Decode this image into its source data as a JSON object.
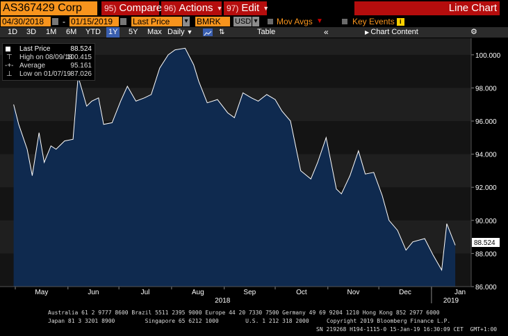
{
  "toolbar": {
    "ticker": "AS367429 Corp",
    "compare": {
      "num": "95)",
      "label": "Compare"
    },
    "actions": {
      "num": "96)",
      "label": "Actions"
    },
    "edit": {
      "num": "97)",
      "label": "Edit"
    },
    "view_title": "Line Chart"
  },
  "settings": {
    "start_date": "04/30/2018",
    "separator": "-",
    "end_date": "01/15/2019",
    "field": "Last Price",
    "source": "BMRK",
    "currency": "USD",
    "mov_avgs": "Mov Avgs",
    "key_events": "Key Events",
    "info": "i"
  },
  "periods": {
    "items": [
      "1D",
      "3D",
      "1M",
      "6M",
      "YTD",
      "1Y",
      "5Y",
      "Max"
    ],
    "selected": "1Y",
    "frequency": "Daily",
    "table": "Table",
    "chart_content": "Chart Content"
  },
  "legend": {
    "last_price_label": "Last Price",
    "last_price_value": "88.524",
    "high_label": "High on 08/09/18",
    "high_value": "100.415",
    "average_label": "Average",
    "average_value": "95.161",
    "low_label": "Low on 01/07/19",
    "low_value": "87.026"
  },
  "last_price_tag": "88.524",
  "footer": {
    "line1": "Australia 61 2 9777 8600 Brazil 5511 2395 9000 Europe 44 20 7330 7500 Germany 49 69 9204 1210 Hong Kong 852 2977 6000",
    "line2_left": "Japan 81 3 3201 8900         Singapore 65 6212 1000        U.S. 1 212 318 2000",
    "line2_right": "Copyright 2019 Bloomberg Finance L.P.",
    "line3": "SN 219268 H194-1115-0 15-Jan-19 16:30:09 CET  GMT+1:00"
  },
  "colors": {
    "area_fill": "#0f2a4f",
    "line": "#ffffff",
    "orange": "#f7941d",
    "red": "#b50d0d"
  },
  "chart_data": {
    "type": "area",
    "ylim": [
      86,
      101
    ],
    "y_ticks": [
      "86.000",
      "88.000",
      "90.000",
      "92.000",
      "94.000",
      "96.000",
      "98.000",
      "100.000"
    ],
    "x_months": [
      "May",
      "Jun",
      "Jul",
      "Aug",
      "Sep",
      "Oct",
      "Nov",
      "Dec",
      "Jan"
    ],
    "x_years": [
      "2018",
      "2019"
    ],
    "x": [
      "2018-04-30",
      "2018-05-03",
      "2018-05-08",
      "2018-05-11",
      "2018-05-15",
      "2018-05-18",
      "2018-05-22",
      "2018-05-25",
      "2018-05-30",
      "2018-06-04",
      "2018-06-07",
      "2018-06-12",
      "2018-06-15",
      "2018-06-19",
      "2018-06-22",
      "2018-06-27",
      "2018-07-02",
      "2018-07-06",
      "2018-07-11",
      "2018-07-16",
      "2018-07-20",
      "2018-07-25",
      "2018-07-30",
      "2018-08-03",
      "2018-08-09",
      "2018-08-14",
      "2018-08-17",
      "2018-08-22",
      "2018-08-28",
      "2018-09-03",
      "2018-09-07",
      "2018-09-12",
      "2018-09-17",
      "2018-09-21",
      "2018-09-26",
      "2018-10-01",
      "2018-10-05",
      "2018-10-10",
      "2018-10-16",
      "2018-10-22",
      "2018-10-26",
      "2018-10-31",
      "2018-11-06",
      "2018-11-09",
      "2018-11-14",
      "2018-11-19",
      "2018-11-23",
      "2018-11-28",
      "2018-12-03",
      "2018-12-07",
      "2018-12-12",
      "2018-12-17",
      "2018-12-21",
      "2018-12-28",
      "2019-01-02",
      "2019-01-07",
      "2019-01-10",
      "2019-01-15"
    ],
    "series": [
      {
        "values": [
          97.0,
          95.8,
          94.3,
          92.7,
          95.3,
          93.5,
          94.5,
          94.3,
          94.8,
          94.9,
          98.7,
          96.9,
          97.2,
          97.4,
          95.8,
          95.9,
          97.2,
          98.1,
          97.2,
          97.4,
          97.6,
          99.2,
          100.0,
          100.3,
          100.4,
          99.4,
          98.4,
          97.1,
          97.3,
          96.5,
          96.2,
          97.7,
          97.4,
          97.2,
          97.6,
          97.3,
          96.6,
          96.0,
          93.0,
          92.5,
          93.5,
          95.0,
          91.9,
          91.6,
          92.7,
          94.2,
          92.8,
          92.9,
          91.5,
          90.0,
          89.4,
          88.2,
          88.7,
          88.9,
          87.9,
          87.0,
          89.8,
          88.5
        ]
      }
    ]
  }
}
